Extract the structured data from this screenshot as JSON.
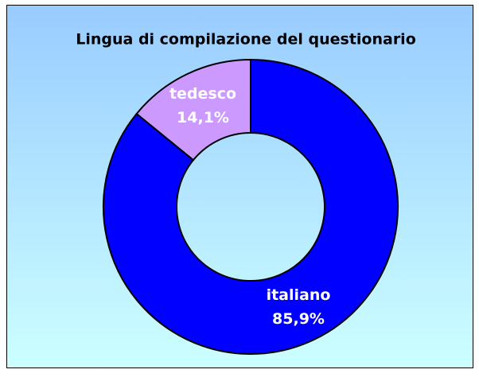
{
  "chart_data": {
    "type": "donut",
    "title": "Lingua di compilazione del questionario",
    "categories": [
      "italiano",
      "tedesco"
    ],
    "values": [
      85.9,
      14.1
    ],
    "value_labels": [
      "85,9%",
      "14,1%"
    ],
    "colors": [
      "#0000ff",
      "#cc99ff"
    ]
  }
}
